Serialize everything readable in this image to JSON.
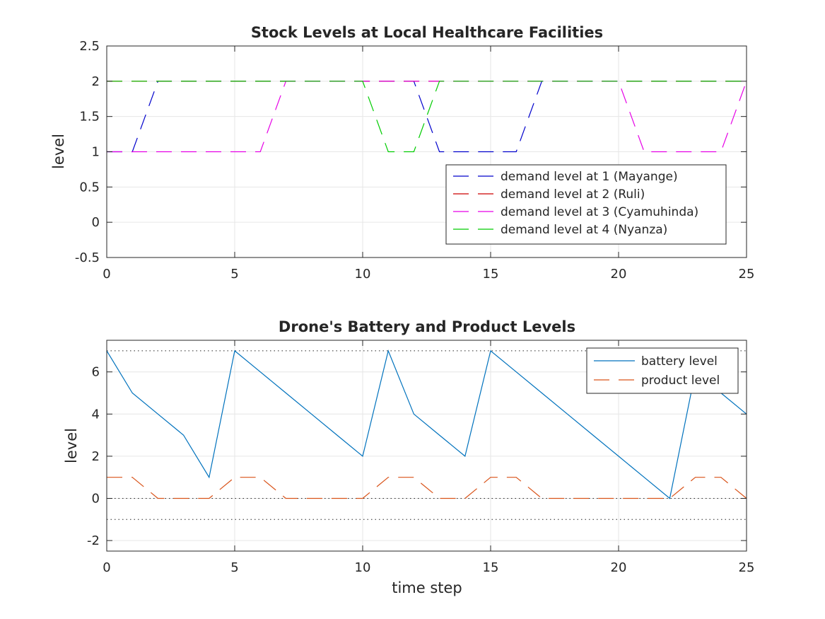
{
  "chart_data": [
    {
      "type": "line",
      "title": "Stock Levels at Local Healthcare Facilities",
      "xlabel": "",
      "ylabel": "level",
      "xlim": [
        0,
        25
      ],
      "ylim": [
        -0.5,
        2.5
      ],
      "xticks": [
        "0",
        "5",
        "10",
        "15",
        "20",
        "25"
      ],
      "yticks": [
        "-0.5",
        "0",
        "0.5",
        "1",
        "1.5",
        "2",
        "2.5"
      ],
      "grid": true,
      "legend_position": "lower-right",
      "series": [
        {
          "name": "demand level at 1 (Mayange)",
          "color": "#0000cc",
          "style": "dashed",
          "x": [
            0,
            1,
            2,
            3,
            4,
            5,
            6,
            7,
            8,
            9,
            10,
            11,
            12,
            13,
            14,
            15,
            16,
            17,
            18,
            19,
            20,
            21,
            22,
            23,
            24,
            25
          ],
          "values": [
            1,
            1,
            2,
            2,
            2,
            2,
            2,
            2,
            2,
            2,
            2,
            2,
            2,
            1,
            1,
            1,
            1,
            2,
            2,
            2,
            2,
            2,
            2,
            2,
            2,
            2
          ]
        },
        {
          "name": "demand level at 2 (Ruli)",
          "color": "#cc0000",
          "style": "dashed",
          "x": [
            0,
            1,
            2,
            3,
            4,
            5,
            6,
            7,
            8,
            9,
            10,
            11,
            12,
            13,
            14,
            15,
            16,
            17,
            18,
            19,
            20,
            21,
            22,
            23,
            24,
            25
          ],
          "values": [
            2,
            2,
            2,
            2,
            2,
            2,
            2,
            2,
            2,
            2,
            2,
            2,
            2,
            2,
            2,
            2,
            2,
            2,
            2,
            2,
            2,
            2,
            2,
            2,
            2,
            2
          ]
        },
        {
          "name": "demand level at 3 (Cyamuhinda)",
          "color": "#e600e6",
          "style": "dashed",
          "x": [
            0,
            1,
            2,
            3,
            4,
            5,
            6,
            7,
            8,
            9,
            10,
            11,
            12,
            13,
            14,
            15,
            16,
            17,
            18,
            19,
            20,
            21,
            22,
            23,
            24,
            25
          ],
          "values": [
            1,
            1,
            1,
            1,
            1,
            1,
            1,
            2,
            2,
            2,
            2,
            2,
            2,
            2,
            2,
            2,
            2,
            2,
            2,
            2,
            2,
            1,
            1,
            1,
            1,
            2
          ]
        },
        {
          "name": "demand level at 4 (Nyanza)",
          "color": "#00cc00",
          "style": "dashed",
          "x": [
            0,
            1,
            2,
            3,
            4,
            5,
            6,
            7,
            8,
            9,
            10,
            11,
            12,
            13,
            14,
            15,
            16,
            17,
            18,
            19,
            20,
            21,
            22,
            23,
            24,
            25
          ],
          "values": [
            2,
            2,
            2,
            2,
            2,
            2,
            2,
            2,
            2,
            2,
            2,
            1,
            1,
            2,
            2,
            2,
            2,
            2,
            2,
            2,
            2,
            2,
            2,
            2,
            2,
            2
          ]
        }
      ]
    },
    {
      "type": "line",
      "title": "Drone's Battery and Product Levels",
      "xlabel": "time step",
      "ylabel": "level",
      "xlim": [
        0,
        25
      ],
      "ylim": [
        -2.5,
        7.5
      ],
      "xticks": [
        "0",
        "5",
        "10",
        "15",
        "20",
        "25"
      ],
      "yticks": [
        "-2",
        "0",
        "2",
        "4",
        "6"
      ],
      "grid": true,
      "legend_position": "top-right",
      "reference_lines": [
        7,
        0,
        -1
      ],
      "series": [
        {
          "name": "battery level",
          "color": "#0072bd",
          "style": "solid",
          "x": [
            0,
            1,
            2,
            3,
            4,
            5,
            6,
            7,
            8,
            9,
            10,
            11,
            12,
            13,
            14,
            15,
            16,
            17,
            18,
            19,
            20,
            21,
            22,
            23,
            24,
            25
          ],
          "values": [
            7,
            5,
            4,
            3,
            1,
            7,
            6,
            5,
            4,
            3,
            2,
            7,
            4,
            3,
            2,
            7,
            6,
            5,
            4,
            3,
            2,
            1,
            0,
            6,
            5,
            4
          ]
        },
        {
          "name": "product level",
          "color": "#d95319",
          "style": "dashed",
          "x": [
            0,
            1,
            2,
            3,
            4,
            5,
            6,
            7,
            8,
            9,
            10,
            11,
            12,
            13,
            14,
            15,
            16,
            17,
            18,
            19,
            20,
            21,
            22,
            23,
            24,
            25
          ],
          "values": [
            1,
            1,
            0,
            0,
            0,
            1,
            1,
            0,
            0,
            0,
            0,
            1,
            1,
            0,
            0,
            1,
            1,
            0,
            0,
            0,
            0,
            0,
            0,
            1,
            1,
            0
          ]
        }
      ]
    }
  ]
}
